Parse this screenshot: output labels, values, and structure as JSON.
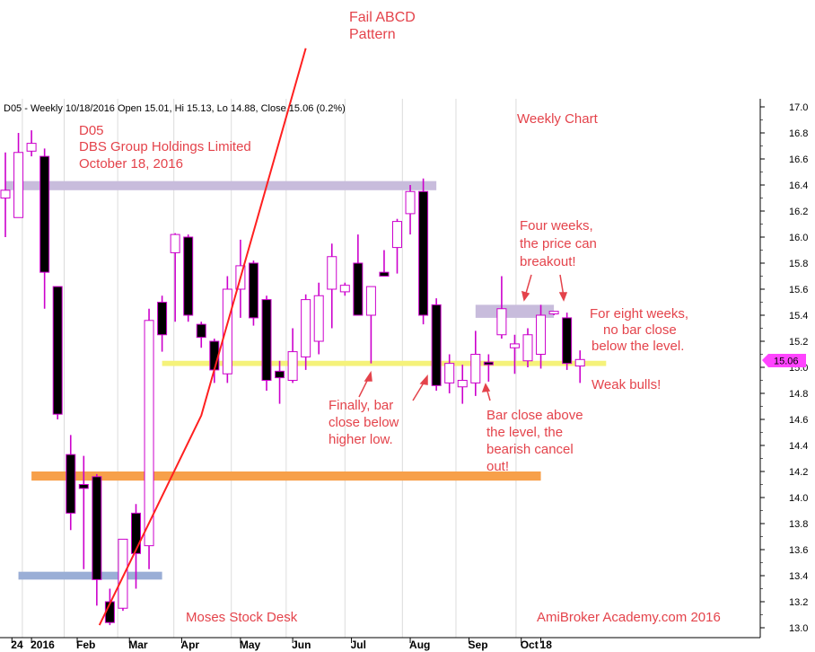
{
  "header": "D05 - Weekly 10/18/2016 Open 15.01, Hi 15.13, Lo 14.88, Close 15.06 (0.2%)",
  "chart_data": {
    "type": "candlestick",
    "ylim": [
      13.0,
      17.0
    ],
    "y_ticks": [
      13.0,
      13.2,
      13.4,
      13.6,
      13.8,
      14.0,
      14.2,
      14.4,
      14.6,
      14.8,
      15.0,
      15.2,
      15.4,
      15.6,
      15.8,
      16.0,
      16.2,
      16.4,
      16.6,
      16.8,
      17.0
    ],
    "x_labels": [
      {
        "label": "24",
        "week": 0.5
      },
      {
        "label": "2016",
        "week": 2
      },
      {
        "label": "Feb",
        "week": 5.5
      },
      {
        "label": "Mar",
        "week": 9.5
      },
      {
        "label": "Apr",
        "week": 13.5
      },
      {
        "label": "May",
        "week": 18
      },
      {
        "label": "Jun",
        "week": 22
      },
      {
        "label": "Jul",
        "week": 26.5
      },
      {
        "label": "Aug",
        "week": 31
      },
      {
        "label": "Sep",
        "week": 35.5
      },
      {
        "label": "Oct",
        "week": 39.5
      },
      {
        "label": "18",
        "week": 41
      }
    ],
    "candles": [
      {
        "o": 16.3,
        "h": 16.65,
        "l": 16.0,
        "c": 16.36
      },
      {
        "o": 16.15,
        "h": 16.8,
        "l": 16.15,
        "c": 16.65
      },
      {
        "o": 16.66,
        "h": 16.82,
        "l": 16.62,
        "c": 16.72
      },
      {
        "o": 16.62,
        "h": 16.68,
        "l": 15.45,
        "c": 15.73
      },
      {
        "o": 15.62,
        "h": 15.62,
        "l": 14.6,
        "c": 14.64
      },
      {
        "o": 14.33,
        "h": 14.48,
        "l": 13.75,
        "c": 13.88
      },
      {
        "o": 14.1,
        "h": 14.32,
        "l": 13.45,
        "c": 14.07
      },
      {
        "o": 14.16,
        "h": 14.18,
        "l": 13.17,
        "c": 13.37
      },
      {
        "o": 13.2,
        "h": 13.3,
        "l": 13.02,
        "c": 13.04
      },
      {
        "o": 13.15,
        "h": 13.68,
        "l": 13.13,
        "c": 13.68
      },
      {
        "o": 13.88,
        "h": 13.95,
        "l": 13.3,
        "c": 13.57
      },
      {
        "o": 13.63,
        "h": 15.45,
        "l": 13.45,
        "c": 15.36
      },
      {
        "o": 15.5,
        "h": 15.55,
        "l": 15.12,
        "c": 15.25
      },
      {
        "o": 15.88,
        "h": 16.03,
        "l": 15.35,
        "c": 16.02
      },
      {
        "o": 16.0,
        "h": 16.02,
        "l": 15.35,
        "c": 15.4
      },
      {
        "o": 15.33,
        "h": 15.35,
        "l": 15.15,
        "c": 15.23
      },
      {
        "o": 15.2,
        "h": 15.22,
        "l": 14.88,
        "c": 14.98
      },
      {
        "o": 14.95,
        "h": 15.7,
        "l": 14.88,
        "c": 15.6
      },
      {
        "o": 15.6,
        "h": 15.98,
        "l": 15.38,
        "c": 15.78
      },
      {
        "o": 15.8,
        "h": 15.82,
        "l": 15.32,
        "c": 15.38
      },
      {
        "o": 15.52,
        "h": 15.55,
        "l": 14.82,
        "c": 14.9
      },
      {
        "o": 14.97,
        "h": 15.05,
        "l": 14.72,
        "c": 14.92
      },
      {
        "o": 14.9,
        "h": 15.3,
        "l": 14.88,
        "c": 15.12
      },
      {
        "o": 15.08,
        "h": 15.56,
        "l": 14.98,
        "c": 15.52
      },
      {
        "o": 15.2,
        "h": 15.65,
        "l": 15.1,
        "c": 15.55
      },
      {
        "o": 15.6,
        "h": 15.95,
        "l": 15.3,
        "c": 15.85
      },
      {
        "o": 15.58,
        "h": 15.65,
        "l": 15.55,
        "c": 15.63
      },
      {
        "o": 15.8,
        "h": 16.02,
        "l": 15.42,
        "c": 15.4
      },
      {
        "o": 15.4,
        "h": 15.58,
        "l": 15.03,
        "c": 15.62
      },
      {
        "o": 15.73,
        "h": 15.9,
        "l": 15.7,
        "c": 15.7
      },
      {
        "o": 15.92,
        "h": 16.14,
        "l": 15.72,
        "c": 16.12
      },
      {
        "o": 16.18,
        "h": 16.4,
        "l": 16.02,
        "c": 16.35
      },
      {
        "o": 16.35,
        "h": 16.45,
        "l": 15.33,
        "c": 15.4
      },
      {
        "o": 15.48,
        "h": 15.53,
        "l": 14.82,
        "c": 14.86
      },
      {
        "o": 14.88,
        "h": 15.1,
        "l": 14.8,
        "c": 15.03
      },
      {
        "o": 14.85,
        "h": 15.02,
        "l": 14.72,
        "c": 14.9
      },
      {
        "o": 14.88,
        "h": 15.28,
        "l": 14.78,
        "c": 15.1
      },
      {
        "o": 15.04,
        "h": 15.1,
        "l": 14.89,
        "c": 15.02
      },
      {
        "o": 15.25,
        "h": 15.7,
        "l": 15.22,
        "c": 15.45
      },
      {
        "o": 15.15,
        "h": 15.25,
        "l": 14.95,
        "c": 15.18
      },
      {
        "o": 15.05,
        "h": 15.3,
        "l": 15.0,
        "c": 15.25
      },
      {
        "o": 15.1,
        "h": 15.48,
        "l": 14.99,
        "c": 15.4
      },
      {
        "o": 15.41,
        "h": 15.43,
        "l": 15.4,
        "c": 15.43
      },
      {
        "o": 15.38,
        "h": 15.42,
        "l": 14.98,
        "c": 15.03
      },
      {
        "o": 15.01,
        "h": 15.13,
        "l": 14.88,
        "c": 15.06
      }
    ],
    "levels": [
      {
        "name": "lavender-top",
        "from": 0,
        "to": 33,
        "y1": 16.36,
        "y2": 16.43,
        "color": "#c8bcdc"
      },
      {
        "name": "lavender-right",
        "from": 36,
        "to": 42,
        "y1": 15.38,
        "y2": 15.48,
        "color": "#c8bcdc"
      },
      {
        "name": "yellow",
        "from": 12,
        "to": 46,
        "y1": 15.01,
        "y2": 15.05,
        "color": "#f5f27a"
      },
      {
        "name": "orange",
        "from": 2,
        "to": 41,
        "y1": 14.13,
        "y2": 14.2,
        "color": "#f7a04a"
      },
      {
        "name": "blue",
        "from": 1,
        "to": 12,
        "y1": 13.37,
        "y2": 13.43,
        "color": "#9aaed6"
      }
    ],
    "red_line": [
      [
        7.2,
        13.02
      ],
      [
        15.0,
        14.63
      ],
      [
        23.0,
        17.45
      ]
    ],
    "last_price": "15.06"
  },
  "annotations": {
    "ticker": "D05",
    "company": "DBS Group Holdings Limited",
    "date": "October 18, 2016",
    "weekly_chart": "Weekly Chart",
    "fail_abcd_1": "Fail ABCD",
    "fail_abcd_2": "Pattern",
    "four_weeks_1": "Four weeks,",
    "four_weeks_2": "the price can",
    "four_weeks_3": "breakout!",
    "eight_weeks_1": "For eight weeks,",
    "eight_weeks_2": "no bar close",
    "eight_weeks_3": "below the level.",
    "weak_bulls": "Weak bulls!",
    "finally_1": "Finally, bar",
    "finally_2": "close below",
    "finally_3": "higher low.",
    "bar_above_1": "Bar close above",
    "bar_above_2": "the level, the",
    "bar_above_3": "bearish cancel",
    "bar_above_4": "out!",
    "moses": "Moses Stock Desk",
    "academy": "AmiBroker Academy.com  2016"
  },
  "colors": {
    "bull_body": "#ffffff",
    "bear_body": "#000000",
    "outline": "#cc00cc",
    "annotation": "#e4434b",
    "red_line": "#ff2020",
    "price_tag": "#ff44ff"
  }
}
